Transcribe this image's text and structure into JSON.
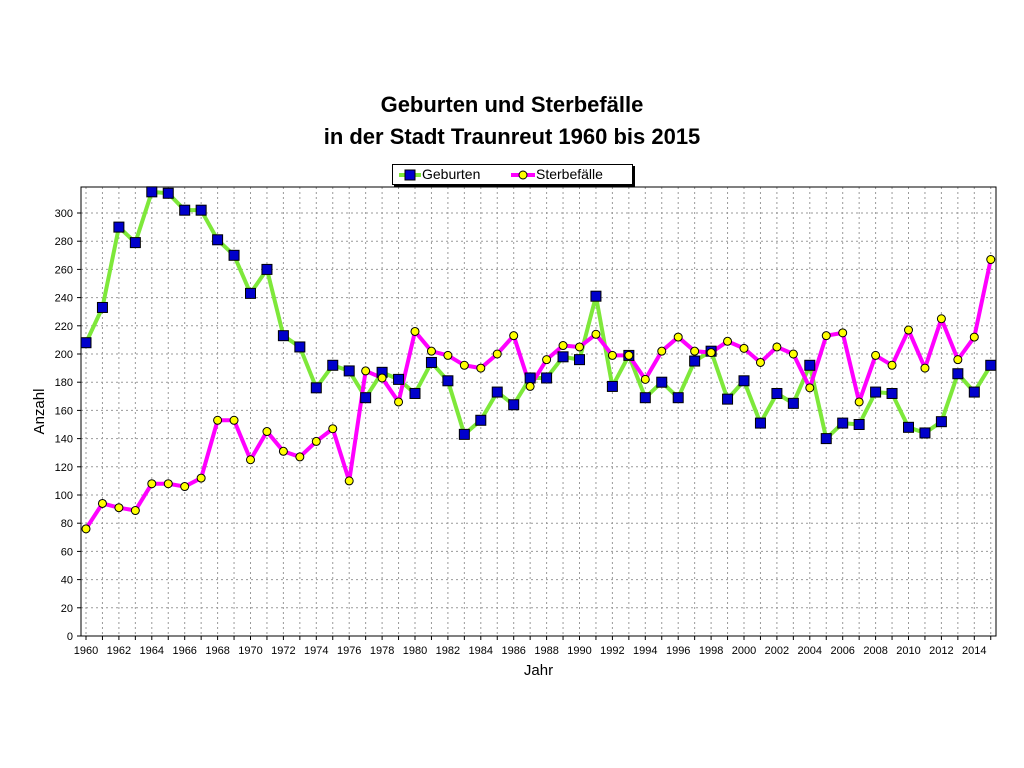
{
  "title_line1": "Geburten und Sterbefälle",
  "title_line2": "in der Stadt Traunreut 1960 bis 2015",
  "chart_data": {
    "type": "line",
    "title": "Geburten und Sterbefälle in der Stadt Traunreut 1960 bis 2015",
    "xlabel": "Jahr",
    "ylabel": "Anzahl",
    "ylim": [
      0,
      320
    ],
    "xlim": [
      1960,
      2015
    ],
    "grid": true,
    "legend_position": "top-center",
    "x": [
      1960,
      1961,
      1962,
      1963,
      1964,
      1965,
      1966,
      1967,
      1968,
      1969,
      1970,
      1971,
      1972,
      1973,
      1974,
      1975,
      1976,
      1977,
      1978,
      1979,
      1980,
      1981,
      1982,
      1983,
      1984,
      1985,
      1986,
      1987,
      1988,
      1989,
      1990,
      1991,
      1992,
      1993,
      1994,
      1995,
      1996,
      1997,
      1998,
      1999,
      2000,
      2001,
      2002,
      2003,
      2004,
      2005,
      2006,
      2007,
      2008,
      2009,
      2010,
      2011,
      2012,
      2013,
      2014,
      2015
    ],
    "series": [
      {
        "name": "Geburten",
        "color": "#7ee83a",
        "marker": "square",
        "marker_color": "#0000cc",
        "values": [
          208,
          233,
          290,
          279,
          315,
          314,
          302,
          302,
          281,
          270,
          243,
          260,
          213,
          205,
          176,
          192,
          188,
          169,
          187,
          182,
          172,
          194,
          181,
          143,
          153,
          173,
          164,
          183,
          183,
          198,
          196,
          241,
          177,
          199,
          169,
          180,
          169,
          195,
          202,
          168,
          181,
          151,
          172,
          165,
          192,
          140,
          151,
          150,
          173,
          172,
          148,
          144,
          152,
          186,
          173,
          192
        ]
      },
      {
        "name": "Sterbefälle",
        "color": "#ff00ff",
        "marker": "circle",
        "marker_color": "#ffff00",
        "values": [
          76,
          94,
          91,
          89,
          108,
          108,
          106,
          112,
          153,
          153,
          125,
          145,
          131,
          127,
          138,
          147,
          110,
          188,
          183,
          166,
          216,
          202,
          199,
          192,
          190,
          200,
          213,
          177,
          196,
          206,
          205,
          214,
          199,
          199,
          182,
          202,
          212,
          202,
          201,
          209,
          204,
          194,
          205,
          200,
          176,
          213,
          215,
          166,
          199,
          192,
          217,
          190,
          225,
          196,
          212,
          267
        ]
      }
    ],
    "xticks": [
      "1960",
      "1962",
      "1964",
      "1966",
      "1968",
      "1970",
      "1972",
      "1974",
      "1976",
      "1978",
      "1980",
      "1982",
      "1984",
      "1986",
      "1988",
      "1990",
      "1992",
      "1994",
      "1996",
      "1998",
      "2000",
      "2002",
      "2004",
      "2006",
      "2008",
      "2010",
      "2012",
      "2014"
    ],
    "yticks": [
      "0",
      "20",
      "40",
      "60",
      "80",
      "100",
      "120",
      "140",
      "160",
      "180",
      "200",
      "220",
      "240",
      "260",
      "280",
      "300"
    ]
  }
}
